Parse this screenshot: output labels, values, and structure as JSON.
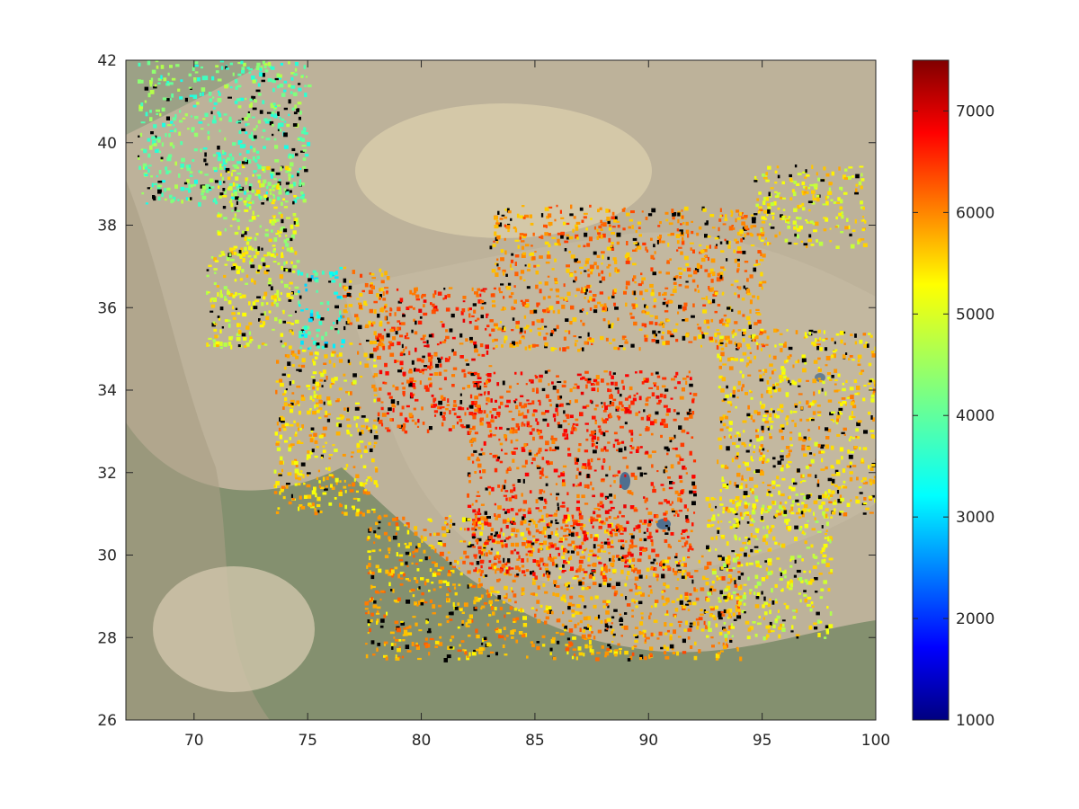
{
  "chart_data": {
    "type": "heatmap",
    "title": "",
    "xlabel": "",
    "ylabel": "",
    "xlim": [
      67,
      100
    ],
    "ylim": [
      26,
      42
    ],
    "x_ticks": [
      70,
      75,
      80,
      85,
      90,
      95,
      100
    ],
    "y_ticks": [
      26,
      28,
      30,
      32,
      34,
      36,
      38,
      40,
      42
    ],
    "x_tick_labels": [
      "70",
      "75",
      "80",
      "85",
      "90",
      "95",
      "100"
    ],
    "y_tick_labels": [
      "26",
      "28",
      "30",
      "32",
      "34",
      "36",
      "38",
      "40",
      "42"
    ],
    "colorbar": {
      "colormap": "jet",
      "range": [
        1000,
        7500
      ],
      "ticks": [
        1000,
        2000,
        3000,
        4000,
        5000,
        6000,
        7000
      ],
      "tick_labels": [
        "1000",
        "2000",
        "3000",
        "4000",
        "5000",
        "6000",
        "7000"
      ]
    },
    "basemap": "satellite imagery",
    "no_data_color": "#000000",
    "regions": [
      {
        "lon": [
          67.5,
          75
        ],
        "lat": [
          38.5,
          42
        ],
        "value": 4100
      },
      {
        "lon": [
          71,
          74.5
        ],
        "lat": [
          37,
          39.5
        ],
        "value": 4800
      },
      {
        "lon": [
          74.5,
          76.5
        ],
        "lat": [
          35,
          37
        ],
        "value": 3600
      },
      {
        "lon": [
          76.5,
          78.5
        ],
        "lat": [
          35,
          37
        ],
        "value": 5800
      },
      {
        "lon": [
          70.5,
          74.5
        ],
        "lat": [
          35,
          37.5
        ],
        "value": 5000
      },
      {
        "lon": [
          73.5,
          78
        ],
        "lat": [
          31,
          35
        ],
        "value": 5400
      },
      {
        "lon": [
          78,
          83
        ],
        "lat": [
          33,
          36.5
        ],
        "value": 6300
      },
      {
        "lon": [
          77.5,
          88.5
        ],
        "lat": [
          27.5,
          31
        ],
        "value": 5600
      },
      {
        "lon": [
          82,
          92
        ],
        "lat": [
          29.5,
          34.5
        ],
        "value": 6300
      },
      {
        "lon": [
          83,
          95
        ],
        "lat": [
          35,
          38.5
        ],
        "value": 5800
      },
      {
        "lon": [
          88,
          94
        ],
        "lat": [
          27.5,
          30
        ],
        "value": 5700
      },
      {
        "lon": [
          92.5,
          98
        ],
        "lat": [
          28,
          31.5
        ],
        "value": 5000
      },
      {
        "lon": [
          93,
          100
        ],
        "lat": [
          31,
          35.5
        ],
        "value": 5400
      },
      {
        "lon": [
          94.5,
          99.5
        ],
        "lat": [
          37.5,
          39.5
        ],
        "value": 5100
      }
    ]
  }
}
